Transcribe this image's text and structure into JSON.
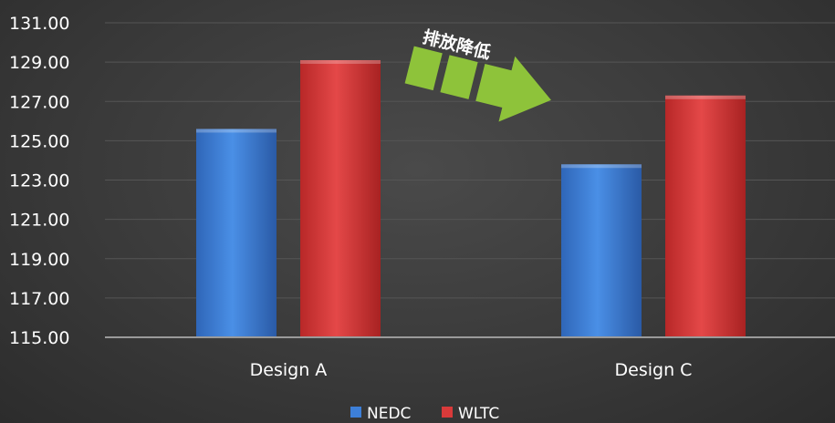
{
  "chart_data": {
    "type": "bar",
    "categories": [
      "Design A",
      "Design C"
    ],
    "series": [
      {
        "name": "NEDC",
        "values": [
          125.6,
          123.8
        ],
        "color": "#3d7fd8"
      },
      {
        "name": "WLTC",
        "values": [
          129.1,
          127.3
        ],
        "color": "#d93a3a"
      }
    ],
    "yticks": [
      "131.00",
      "129.00",
      "127.00",
      "125.00",
      "123.00",
      "121.00",
      "119.00",
      "117.00",
      "115.00"
    ],
    "ylim": [
      115,
      131
    ],
    "grid": true,
    "legend_position": "bottom",
    "annotation": {
      "text": "排放降低",
      "shape": "arrow-right",
      "color": "#8ec33a"
    }
  }
}
